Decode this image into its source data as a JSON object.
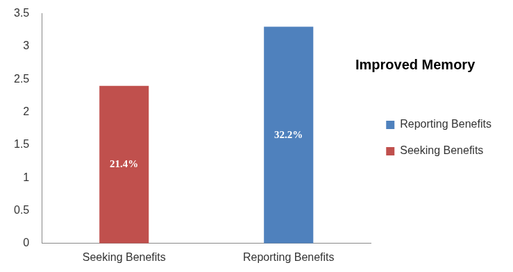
{
  "chart_data": {
    "type": "bar",
    "title": "Improved Memory",
    "categories": [
      "Seeking Benefits",
      "Reporting Benefits"
    ],
    "series": [
      {
        "name": "Reporting Benefits",
        "color": "#4f81bd",
        "values": [
          null,
          3.3
        ]
      },
      {
        "name": "Seeking Benefits",
        "color": "#c0504d",
        "values": [
          2.4,
          null
        ]
      }
    ],
    "ylim": [
      0,
      3.5
    ],
    "yticks": [
      0,
      0.5,
      1,
      1.5,
      2,
      2.5,
      3,
      3.5
    ],
    "grid": false,
    "legend": "right",
    "annotations": [
      {
        "category": "Seeking Benefits",
        "text": "21.4%"
      },
      {
        "category": "Reporting Benefits",
        "text": "32.2%"
      }
    ]
  }
}
